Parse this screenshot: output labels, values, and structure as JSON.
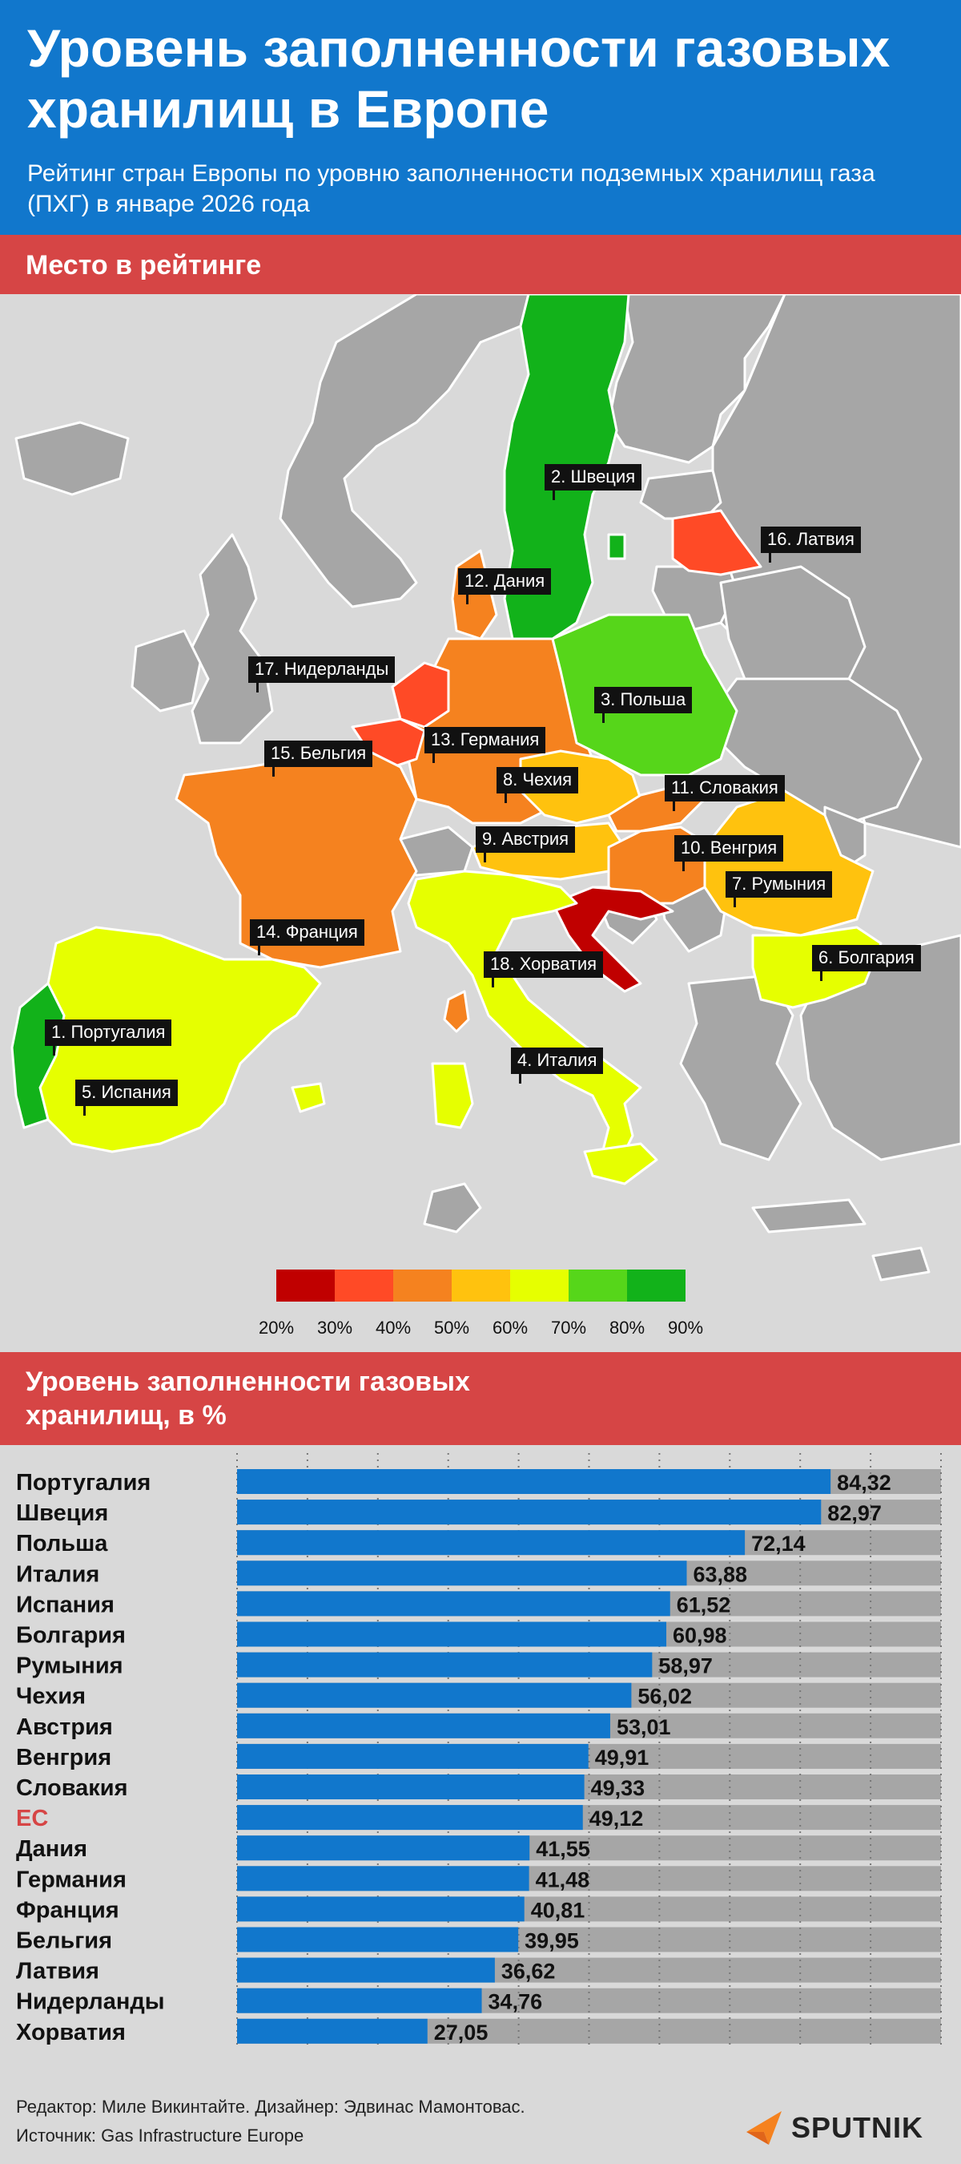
{
  "header": {
    "title": "Уровень заполненности газовых хранилищ в Европе",
    "subtitle": "Рейтинг стран Европы по уровню заполненности подземных хранилищ газа (ПХГ) в январе 2026 года"
  },
  "map": {
    "section_title": "Место в рейтинге",
    "labels": [
      "1. Португалия",
      "2. Швеция",
      "3. Польша",
      "4. Италия",
      "5. Испания",
      "6. Болгария",
      "7. Румыния",
      "8. Чехия",
      "9. Австрия",
      "10. Венгрия",
      "11. Словакия",
      "12. Дания",
      "13. Германия",
      "14. Франция",
      "15. Бельгия",
      "16. Латвия",
      "17. Нидерланды",
      "18. Хорватия"
    ],
    "legend": {
      "ticks": [
        "20%",
        "30%",
        "40%",
        "50%",
        "60%",
        "70%",
        "80%",
        "90%"
      ],
      "colors": [
        "#c00000",
        "#ff4a26",
        "#f5821f",
        "#ffc20e",
        "#e6ff00",
        "#56d61a",
        "#12b21a"
      ]
    }
  },
  "chart_data": {
    "type": "bar",
    "orientation": "horizontal",
    "title": "Уровень заполненности газовых хранилищ, в %",
    "categories": [
      "Португалия",
      "Швеция",
      "Польша",
      "Италия",
      "Испания",
      "Болгария",
      "Румыния",
      "Чехия",
      "Австрия",
      "Венгрия",
      "Словакия",
      "ЕС",
      "Дания",
      "Германия",
      "Франция",
      "Бельгия",
      "Латвия",
      "Нидерланды",
      "Хорватия"
    ],
    "values": [
      84.32,
      82.97,
      72.14,
      63.88,
      61.52,
      60.98,
      58.97,
      56.02,
      53.01,
      49.91,
      49.33,
      49.12,
      41.55,
      41.48,
      40.81,
      39.95,
      36.62,
      34.76,
      27.05
    ],
    "value_labels": [
      "84,32",
      "82,97",
      "72,14",
      "63,88",
      "61,52",
      "60,98",
      "58,97",
      "56,02",
      "53,01",
      "49,91",
      "49,33",
      "49,12",
      "41,55",
      "41,48",
      "40,81",
      "39,95",
      "36,62",
      "34,76",
      "27,05"
    ],
    "highlight": "ЕС",
    "xlim": [
      0,
      100
    ],
    "x_ticks": [
      "0",
      "10",
      "20",
      "30",
      "40",
      "50",
      "60",
      "70",
      "80",
      "90",
      "100"
    ],
    "bar_color": "#1177cc",
    "track_color": "#a6a6a6",
    "highlight_color": "#d64545",
    "grid": true
  },
  "footer": {
    "credit_line1": "Редактор: Миле Викинтайте.  Дизайнер: Эдвинас Мамонтовас.",
    "credit_line2": "Источник: Gas Infrastructure Europe",
    "logo_text": "SPUTNIK"
  }
}
